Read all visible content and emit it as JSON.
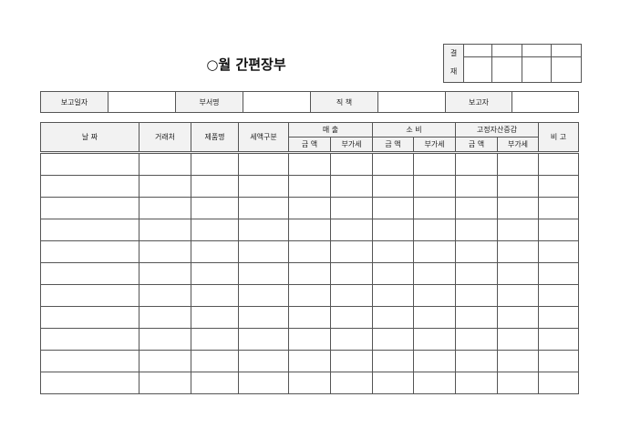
{
  "title": "○월 간편장부",
  "approval": {
    "label_top": "결",
    "label_bottom": "재"
  },
  "info": {
    "report_date": "보고일자",
    "department": "부서명",
    "position": "직  책",
    "reporter": "보고자"
  },
  "table": {
    "date": "날  짜",
    "client": "거래처",
    "product": "제품명",
    "tax_type": "세액구분",
    "sales": "매  출",
    "expense": "소  비",
    "fixed_assets": "고정자산증감",
    "note": "비  고",
    "amount": "금  액",
    "vat": "부가세",
    "row_count": 11
  }
}
